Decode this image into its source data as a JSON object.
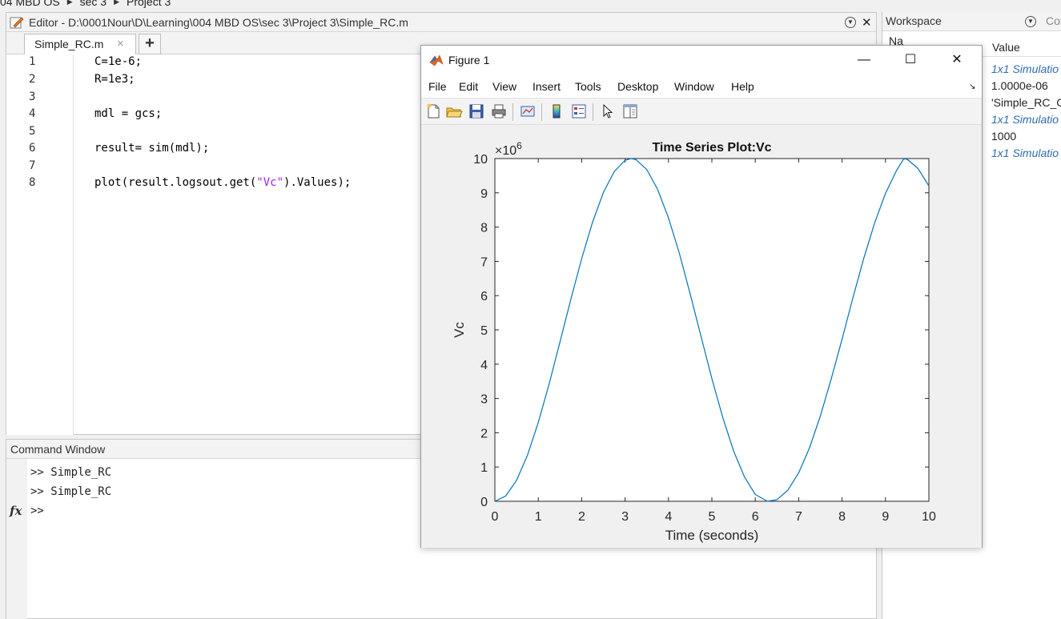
{
  "breadcrumb": {
    "items": [
      "04 MBD OS",
      "sec 3",
      "Project 3"
    ]
  },
  "editor": {
    "title": "Editor - D:\\0001Nour\\D\\Learning\\004 MBD OS\\sec 3\\Project 3\\Simple_RC.m",
    "tab_label": "Simple_RC.m",
    "tab_close": "×",
    "tab_add": "+",
    "lines": [
      {
        "num": "1",
        "text": "C=1e-6;"
      },
      {
        "num": "2",
        "text": "R=1e3;"
      },
      {
        "num": "3",
        "text": ""
      },
      {
        "num": "4",
        "text": "mdl = gcs;"
      },
      {
        "num": "5",
        "text": ""
      },
      {
        "num": "6",
        "text": "result= sim(mdl);"
      },
      {
        "num": "7",
        "text": ""
      },
      {
        "num": "8",
        "text_before": "plot(result.logsout.get(",
        "text_string": "\"Vc\"",
        "text_after": ").Values);"
      }
    ]
  },
  "command_window": {
    "title": "Command Window",
    "lines": [
      ">> Simple_RC",
      ">> Simple_RC",
      ">>"
    ],
    "fx": "fx"
  },
  "workspace": {
    "title": "Workspace",
    "next_panel": "Cor",
    "col_name": "Na",
    "col_value": "Value",
    "values": [
      {
        "text": "1x1 Simulatio",
        "kind": "obj"
      },
      {
        "text": "1.0000e-06",
        "kind": "plain"
      },
      {
        "text": "'Simple_RC_C",
        "kind": "plain"
      },
      {
        "text": "1x1 Simulatio",
        "kind": "obj"
      },
      {
        "text": "1000",
        "kind": "plain"
      },
      {
        "text": "1x1 Simulatio",
        "kind": "obj"
      }
    ]
  },
  "figure": {
    "title": "Figure 1",
    "menu": [
      "File",
      "Edit",
      "View",
      "Insert",
      "Tools",
      "Desktop",
      "Window",
      "Help"
    ],
    "win_minimize": "—",
    "win_maximize": "☐",
    "win_close": "✕"
  },
  "chart_data": {
    "type": "line",
    "title": "Time Series Plot:Vc",
    "xlabel": "Time (seconds)",
    "ylabel": "Vc",
    "y_multiplier": "×10",
    "y_exponent": "6",
    "xlim": [
      0,
      10
    ],
    "ylim": [
      0,
      10
    ],
    "xticks": [
      0,
      1,
      2,
      3,
      4,
      5,
      6,
      7,
      8,
      9,
      10
    ],
    "yticks": [
      0,
      1,
      2,
      3,
      4,
      5,
      6,
      7,
      8,
      9,
      10
    ],
    "grid": false,
    "line_color": "#0072bd",
    "series": [
      {
        "x": [
          0,
          0.25,
          0.5,
          0.75,
          1,
          1.25,
          1.5,
          1.75,
          2,
          2.25,
          2.5,
          2.75,
          3,
          3.14,
          3.25,
          3.5,
          3.75,
          4,
          4.25,
          4.5,
          4.75,
          5,
          5.25,
          5.5,
          5.75,
          6,
          6.28,
          6.5,
          6.75,
          7,
          7.25,
          7.5,
          7.75,
          8,
          8.25,
          8.5,
          8.75,
          9,
          9.25,
          9.42,
          9.5,
          9.75,
          10
        ],
        "values": [
          0,
          0.155,
          0.612,
          1.34,
          2.3,
          3.42,
          4.65,
          5.89,
          7.08,
          8.14,
          9.01,
          9.62,
          9.95,
          10.0,
          9.97,
          9.68,
          9.1,
          8.27,
          7.24,
          6.05,
          4.81,
          3.58,
          2.45,
          1.47,
          0.713,
          0.199,
          0.0,
          0.048,
          0.321,
          0.831,
          1.56,
          2.49,
          3.57,
          4.73,
          5.94,
          7.09,
          8.12,
          8.98,
          9.64,
          9.99,
          9.98,
          9.71,
          9.2
        ]
      }
    ]
  }
}
